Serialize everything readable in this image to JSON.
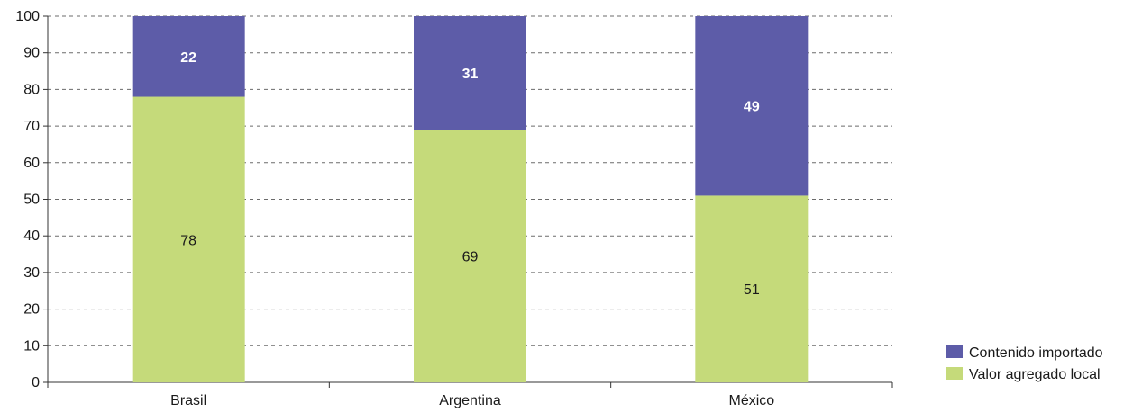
{
  "chart_data": {
    "type": "bar",
    "stacked": true,
    "categories": [
      "Brasil",
      "Argentina",
      "México"
    ],
    "series": [
      {
        "name": "Valor agregado local",
        "values": [
          78,
          69,
          51
        ],
        "color": "#c5da7a",
        "label_style": "normal"
      },
      {
        "name": "Contenido importado",
        "values": [
          22,
          31,
          49
        ],
        "color": "#5d5ca8",
        "label_style": "bold-white"
      }
    ],
    "ylim": [
      0,
      100
    ],
    "yticks": [
      0,
      10,
      20,
      30,
      40,
      50,
      60,
      70,
      80,
      90,
      100
    ],
    "grid": "horizontal-dashed",
    "legend_position": "bottom-right",
    "legend_order": [
      "Contenido importado",
      "Valor agregado local"
    ],
    "title": "",
    "xlabel": "",
    "ylabel": ""
  }
}
